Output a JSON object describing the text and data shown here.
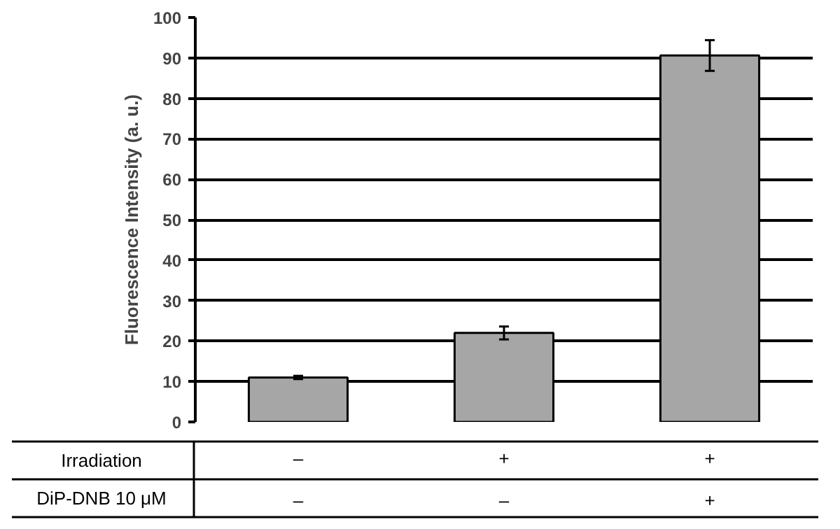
{
  "chart_data": {
    "type": "bar",
    "ylabel": "Fluorescence Intensity (a. u.)",
    "categories": [
      "–\n–",
      "+\n–",
      "+\n+"
    ],
    "values": [
      11,
      22,
      90.6
    ],
    "errors": [
      0.4,
      1.6,
      3.8
    ],
    "color": "#a6a6a6",
    "ylim": [
      0,
      100
    ],
    "yticks": [
      0,
      10,
      20,
      30,
      40,
      50,
      60,
      70,
      80,
      90,
      100
    ],
    "grid": "y",
    "annotations": [
      "Irradiation",
      "DiP-DNB 10 μM"
    ]
  }
}
